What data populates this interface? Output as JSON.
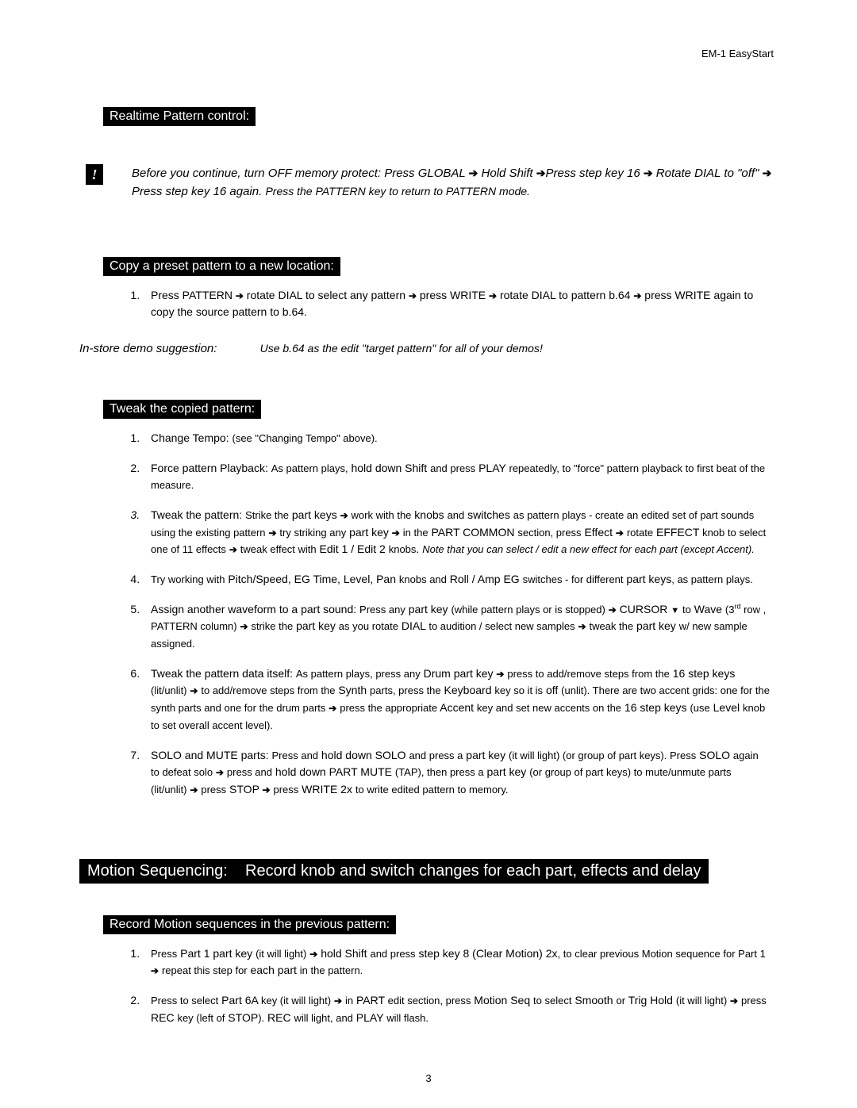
{
  "doc_header": "EM-1 EasyStart",
  "page_number": "3",
  "section1_title": "Realtime Pattern control:",
  "warn_mark": "!",
  "warn_html": "Before you continue, turn OFF memory protect: Press GLOBAL <span class='arrow'>➔</span> Hold Shift <span class='arrow'>➔</span>Press step key 16 <span class='arrow'>➔</span> Rotate DIAL to \"off\" <span class='arrow'>➔</span> Press step key 16 again. <span style='font-size:14px;'>Press the PATTERN key to return to PATTERN mode.</span>",
  "section2_title": "Copy a preset pattern to a new location:",
  "copy_step1": "Press PATTERN <span class='small-arrow'>➔</span> rotate DIAL to select any pattern <span class='small-arrow'>➔</span> press WRITE <span class='small-arrow'>➔</span> rotate DIAL to pattern b.64 <span class='small-arrow'>➔</span> press WRITE again to copy the source pattern to b.64.",
  "demo_left": "In-store demo suggestion:",
  "demo_right": "Use b.64 as the edit \"target pattern\" for all of your demos!",
  "section3_title": "Tweak the copied pattern:",
  "tweak": [
    "Change Tempo: <span style='font-size:13px;'>(see \"Changing Tempo\" above).</span>",
    "Force pattern Playback: <span style='font-size:13px;'>As pattern plays,</span> hold down Shift <span style='font-size:13px;'>and press</span> PLAY <span style='font-size:13px;'>repeatedly, to \"force\" pattern playback to first beat of the measure.</span>",
    "Tweak the pattern: <span style='font-size:13px;'>Strike the</span> part keys <span class='small-arrow'>➔</span> <span style='font-size:13px;'>work with the</span> knobs <span style='font-size:13px;'>and</span> switches <span style='font-size:13px;'>as pattern plays - create an edited set of part sounds using the existing pattern</span> <span class='small-arrow'>➔</span> <span style='font-size:13px;'>try striking any</span> part key <span class='small-arrow'>➔</span> <span style='font-size:13px;'>in the</span> PART COMMON <span style='font-size:13px;'>section,  press</span> Effect <span class='small-arrow'>➔</span> <span style='font-size:13px;'>rotate</span> EFFECT <span style='font-size:13px;'>knob to select one of 11 effects</span> <span class='small-arrow'>➔</span> <span style='font-size:13px;'>tweak effect with</span> Edit 1 / Edit 2 <span style='font-size:13px;'>knobs</span>. <i style='font-size:13px;'>Note that you can select / edit a new effect for each part (except Accent).</i>",
    "<span style='font-size:13px;'>Try working with</span> Pitch/Speed, EG Time, Level, Pan <span style='font-size:13px;'>knobs and</span> Roll / Amp EG <span style='font-size:13px;'>switches - for different</span> part keys<span style='font-size:13px;'>, as pattern plays.</span>",
    "Assign another waveform to a part sound: <span style='font-size:13px;'>Press any</span> part key <span style='font-size:13px;'>(while pattern plays or is stopped)</span> <span class='small-arrow'>➔</span> CURSOR <span class='tri-down'>▼</span> <span style='font-size:13px;'>to</span> Wave <span style='font-size:13px;'>(3<span class='sup'>rd</span> row , PATTERN column)</span> <span class='small-arrow'>➔</span> <span style='font-size:13px;'>strike the</span> part key <span style='font-size:13px;'>as you rotate</span> DIAL <span style='font-size:13px;'>to audition / select new samples</span> <span class='small-arrow'>➔</span> <span style='font-size:13px;'>tweak the</span> part key <span style='font-size:13px;'>w/ new sample assigned.</span>",
    "Tweak the pattern data itself: <span style='font-size:13px;'>As pattern plays, press any</span> Drum part key <span class='small-arrow'>➔</span> <span style='font-size:13px;'>press to add/remove steps from the</span> 16 step keys <span style='font-size:13px;'>(lit/unlit)</span> <span class='small-arrow'>➔</span> <span style='font-size:13px;'>to add/remove steps from the</span> Synth <span style='font-size:13px;'>parts, press the</span> Keyboard <span style='font-size:13px;'>key so it is</span> off <span style='font-size:13px;'>(unlit). There are two accent grids: one for the synth parts and one for the drum parts</span> <span class='small-arrow'>➔</span> <span style='font-size:13px;'>press the appropriate</span> Accent <span style='font-size:13px;'>key and set new accents on the</span> 16 step keys <span style='font-size:13px;'>(use</span> Level <span style='font-size:13px;'>knob to set overall accent level).</span>",
    "SOLO and MUTE parts: <span style='font-size:13px;'>Press and</span> hold down SOLO <span style='font-size:13px;'>and press a</span> part key <span style='font-size:13px;'>(it will light) (or group of part keys). Press</span> SOLO <span style='font-size:13px;'>again to defeat solo</span> <span class='small-arrow'>➔</span> <span style='font-size:13px;'>press and</span> hold down PART MUTE <span style='font-size:13px;'>(TAP), then press a</span> part key <span style='font-size:13px;'>(or group of part keys) to mute/unmute parts (lit/unlit)</span> <span class='small-arrow'>➔</span> <span style='font-size:13px;'>press</span> STOP <span class='small-arrow'>➔</span> <span style='font-size:13px;'>press</span> WRITE 2x <span style='font-size:13px;'>to write edited pattern to memory.</span>"
  ],
  "motion_title": "Motion Sequencing:&nbsp;&nbsp;&nbsp;&nbsp;Record knob and switch changes for each part, effects and delay",
  "section4_title": "Record Motion sequences in the previous pattern:",
  "record": [
    "<span style='font-size:13px;'>Press</span> Part 1 part key <span style='font-size:13px;'>(it will light)</span> <span class='small-arrow'>➔</span> hold Shift <span style='font-size:13px;'>and press</span> step key 8 (Clear Motion) 2x<span style='font-size:13px;'>, to clear previous Motion sequence for Part 1</span> <span class='small-arrow'>➔</span> <span style='font-size:13px;'>repeat this step for</span> each part <span style='font-size:13px;'>in the pattern.</span>",
    "<span style='font-size:13px;'>Press to select</span> Part 6A <span style='font-size:13px;'>key (it will light)</span> <span class='small-arrow'>➔</span> <span style='font-size:13px;'>in</span> PART <span style='font-size:13px;'>edit section, press</span> Motion Seq <span style='font-size:13px;'>to select</span> Smooth <span style='font-size:13px;'>or</span> Trig Hold <span style='font-size:13px;'>(it will light)</span> <span class='small-arrow'>➔</span> <span style='font-size:13px;'>press</span> REC <span style='font-size:13px;'>key (left of</span> STOP<span style='font-size:13px;'>).</span> REC <span style='font-size:13px;'>will light, and</span> PLAY <span style='font-size:13px;'>will flash.</span>"
  ]
}
